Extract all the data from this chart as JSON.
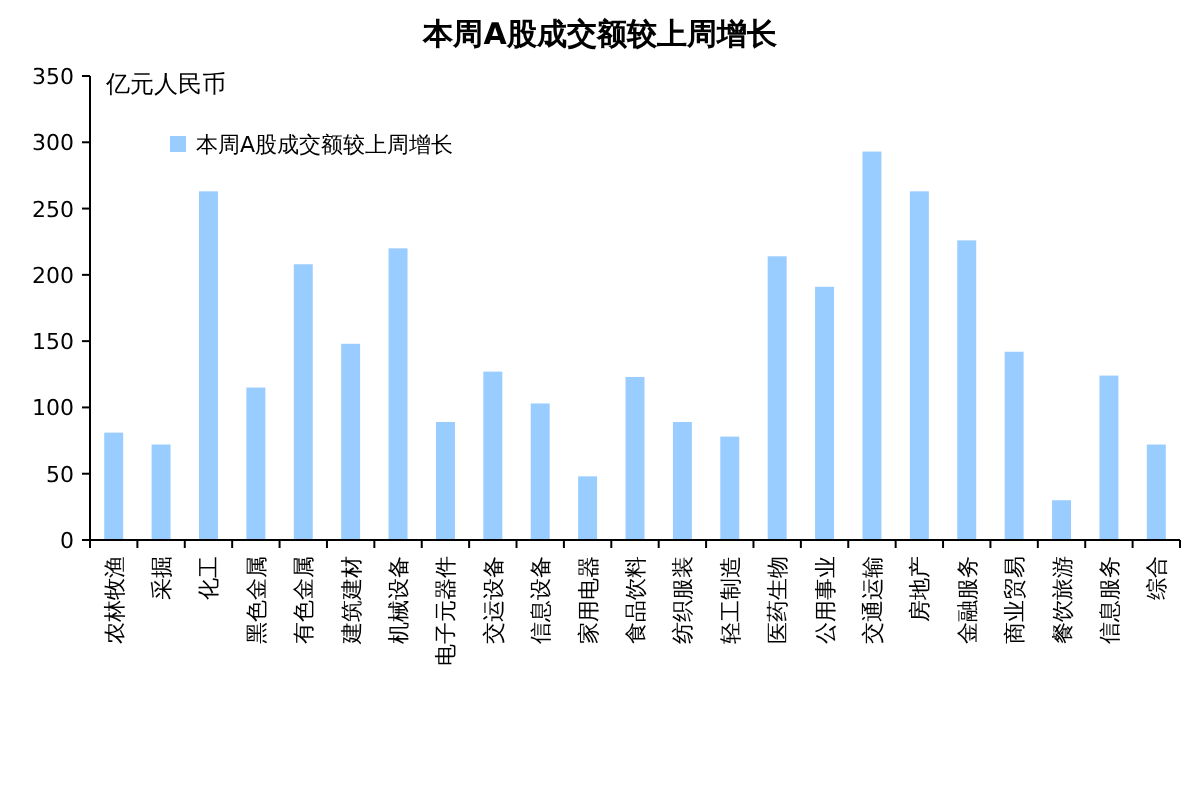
{
  "chart_data": {
    "type": "bar",
    "title": "本周A股成交额较上周增长",
    "ylabel": "亿元人民币",
    "categories": [
      "农林牧渔",
      "采掘",
      "化工",
      "黑色金属",
      "有色金属",
      "建筑建材",
      "机械设备",
      "电子元器件",
      "交运设备",
      "信息设备",
      "家用电器",
      "食品饮料",
      "纺织服装",
      "轻工制造",
      "医药生物",
      "公用事业",
      "交通运输",
      "房地产",
      "金融服务",
      "商业贸易",
      "餐饮旅游",
      "信息服务",
      "综合"
    ],
    "series": [
      {
        "name": "本周A股成交额较上周增长",
        "color": "#99ccff",
        "values": [
          81,
          72,
          263,
          115,
          208,
          148,
          220,
          89,
          127,
          103,
          48,
          123,
          89,
          78,
          214,
          191,
          293,
          263,
          226,
          142,
          30,
          124,
          72
        ]
      }
    ],
    "ylim": [
      0,
      350
    ],
    "yticks": [
      0,
      50,
      100,
      150,
      200,
      250,
      300,
      350
    ],
    "legend": "top left",
    "grid": false
  }
}
